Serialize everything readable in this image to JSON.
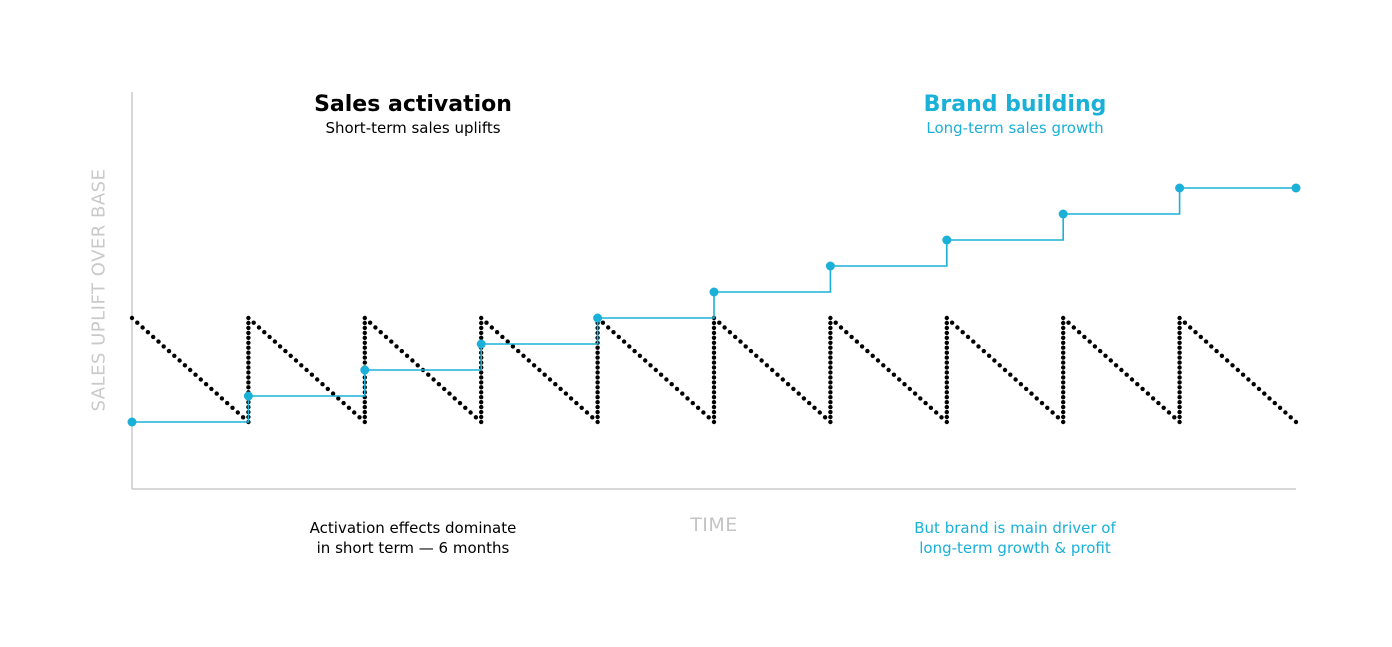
{
  "chart_data": {
    "type": "line",
    "title": "",
    "xlabel": "TIME",
    "ylabel": "SALES UPLIFT OVER BASE",
    "grid": false,
    "legend": "none",
    "x": [
      0,
      1,
      2,
      3,
      4,
      5,
      6,
      7,
      8,
      9,
      10
    ],
    "xlim": [
      0,
      10
    ],
    "ylim": [
      0,
      12
    ],
    "series": [
      {
        "name": "Sales activation",
        "style": "dotted-sawtooth",
        "color": "#000000",
        "peaks": [
          4,
          4,
          4,
          4,
          4,
          4,
          4,
          4,
          4,
          4
        ],
        "troughs": [
          0,
          0,
          0,
          0,
          0,
          0,
          0,
          0,
          0,
          0
        ]
      },
      {
        "name": "Brand building",
        "style": "step",
        "color": "#1ab0d8",
        "values": [
          0,
          1,
          2,
          3,
          4,
          5,
          6,
          7,
          8,
          9,
          9
        ]
      }
    ]
  },
  "annotations": {
    "activation_title": "Sales activation",
    "activation_subtitle": "Short-term sales uplifts",
    "brand_title": "Brand building",
    "brand_subtitle": "Long-term sales growth",
    "activation_note_line1": "Activation effects dominate",
    "activation_note_line2": "in short term — 6 months",
    "brand_note_line1": "But brand is main driver of",
    "brand_note_line2": "long-term growth & profit"
  },
  "colors": {
    "activation": "#000000",
    "brand": "#1ab0d8",
    "axis": "#cccccc",
    "axis_label": "#c4c4c4"
  }
}
